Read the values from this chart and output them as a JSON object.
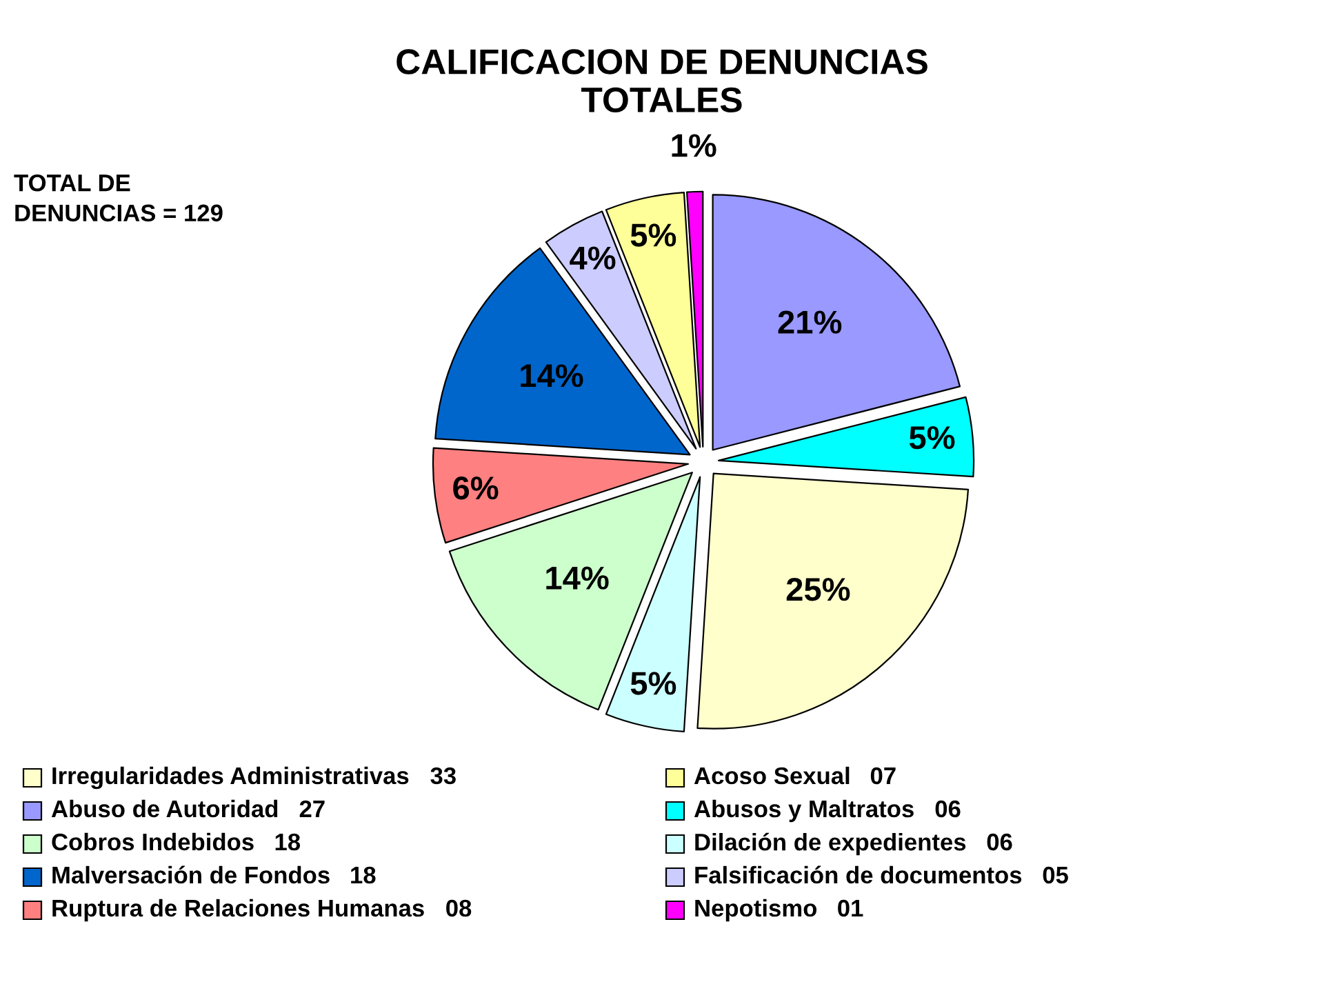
{
  "chart_data": [
    {
      "type": "pie",
      "title": "CALIFICACION DE DENUNCIAS\nTOTALES",
      "annotations": [
        "TOTAL DE\nDENUNCIAS = 129"
      ],
      "categories": [
        null,
        null,
        null,
        null,
        null,
        null,
        null,
        null,
        null,
        null
      ],
      "values": [
        21,
        5,
        25,
        5,
        14,
        6,
        14,
        4,
        5,
        1
      ],
      "colors": [
        "#9999ff",
        "#00ffff",
        "#ffffcc",
        "#ccffff",
        "#ccffcc",
        "#ff8080",
        "#0066cc",
        "#ccccff",
        "#ffff99",
        "#ff00ff"
      ],
      "value_labels": [
        "21%",
        "5%",
        "25%",
        "5%",
        "14%",
        "6%",
        "14%",
        "4%",
        "5%",
        "1%"
      ]
    },
    {
      "type": "other",
      "categories": [
        "Irregularidades Administrativas",
        "Abuso de Autoridad",
        "Cobros Indebidos",
        "Malversación de Fondos",
        "Ruptura de Relaciones Humanas",
        "Acoso Sexual",
        "Abusos y Maltratos",
        "Dilación de expedientes",
        "Falsificación de documentos",
        "Nepotismo"
      ],
      "values": [
        33,
        27,
        18,
        18,
        8,
        7,
        6,
        6,
        5,
        1
      ],
      "value_labels": [
        "33",
        "27",
        "18",
        "18",
        "08",
        "07",
        "06",
        "06",
        "05",
        "01"
      ],
      "colors": [
        "#ffffcc",
        "#9999ff",
        "#ccffcc",
        "#0066cc",
        "#ff8080",
        "#ffff99",
        "#00ffff",
        "#ccffff",
        "#ccccff",
        "#ff00ff"
      ]
    }
  ]
}
